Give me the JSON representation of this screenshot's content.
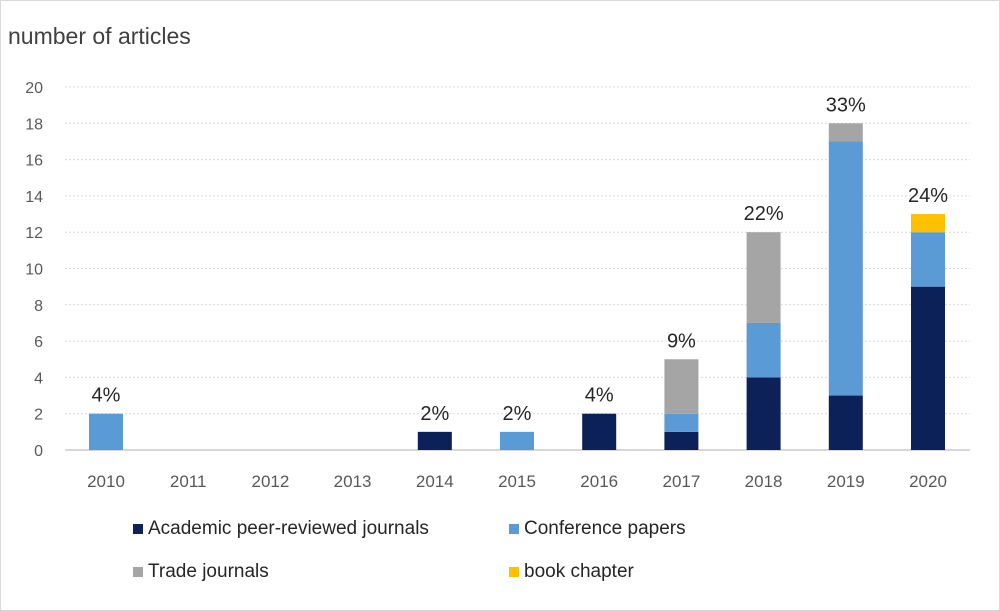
{
  "chart_data": {
    "type": "bar",
    "stacked": true,
    "ylabel": "number of articles",
    "xlabel": "",
    "ylim": [
      0,
      20
    ],
    "yticks": [
      0,
      2,
      4,
      6,
      8,
      10,
      12,
      14,
      16,
      18,
      20
    ],
    "grid": true,
    "legend_position": "bottom",
    "categories": [
      "2010",
      "2011",
      "2012",
      "2013",
      "2014",
      "2015",
      "2016",
      "2017",
      "2018",
      "2019",
      "2020"
    ],
    "series": [
      {
        "name": "Academic peer-reviewed journals",
        "color": "#0b2157",
        "values": [
          0,
          0,
          0,
          0,
          1,
          0,
          2,
          1,
          4,
          3,
          9
        ]
      },
      {
        "name": "Conference papers",
        "color": "#5b9bd5",
        "values": [
          2,
          0,
          0,
          0,
          0,
          1,
          0,
          1,
          3,
          14,
          3
        ]
      },
      {
        "name": "Trade journals",
        "color": "#a5a5a5",
        "values": [
          0,
          0,
          0,
          0,
          0,
          0,
          0,
          3,
          5,
          1,
          0
        ]
      },
      {
        "name": "book chapter",
        "color": "#ffc000",
        "values": [
          0,
          0,
          0,
          0,
          0,
          0,
          0,
          0,
          0,
          0,
          1
        ]
      }
    ],
    "annotations": [
      "4%",
      "",
      "",
      "",
      "2%",
      "2%",
      "4%",
      "9%",
      "22%",
      "33%",
      "24%"
    ]
  }
}
